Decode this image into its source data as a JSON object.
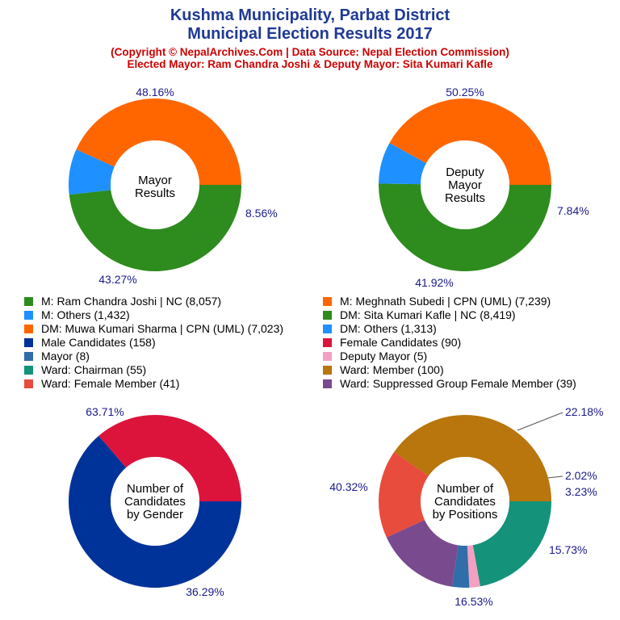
{
  "header": {
    "title_line1": "Kushma Municipality, Parbat District",
    "title_line2": "Municipal Election Results 2017",
    "subtitle_line1": "(Copyright © NepalArchives.Com | Data Source: Nepal Election Commission)",
    "subtitle_line2": "Elected Mayor: Ram Chandra Joshi & Deputy Mayor: Sita Kumari Kafle"
  },
  "legend": {
    "left": [
      {
        "label": "M: Ram Chandra Joshi | NC (8,057)",
        "color": "#2e8b1e"
      },
      {
        "label": "M: Others (1,432)",
        "color": "#1e90ff"
      },
      {
        "label": "DM: Muwa Kumari Sharma | CPN (UML) (7,023)",
        "color": "#ff6600"
      },
      {
        "label": "Male Candidates (158)",
        "color": "#003399"
      },
      {
        "label": "Mayor (8)",
        "color": "#2f6ea8"
      },
      {
        "label": "Ward: Chairman (55)",
        "color": "#14937a"
      },
      {
        "label": "Ward: Female Member (41)",
        "color": "#e84c3d"
      }
    ],
    "right": [
      {
        "label": "M: Meghnath Subedi | CPN (UML) (7,239)",
        "color": "#ff6600"
      },
      {
        "label": "DM: Sita Kumari Kafle | NC (8,419)",
        "color": "#2e8b1e"
      },
      {
        "label": "DM: Others (1,313)",
        "color": "#1e90ff"
      },
      {
        "label": "Female Candidates (90)",
        "color": "#dc143c"
      },
      {
        "label": "Deputy Mayor (5)",
        "color": "#f4a0c0"
      },
      {
        "label": "Ward: Member (100)",
        "color": "#b8760c"
      },
      {
        "label": "Ward: Suppressed Group Female Member (39)",
        "color": "#7a4a8e"
      }
    ]
  },
  "chart_data": [
    {
      "type": "pie",
      "title": "Mayor Results",
      "center_lines": [
        "Mayor",
        "Results"
      ],
      "slices": [
        {
          "name": "M: Ram Chandra Joshi | NC",
          "value": 8057,
          "percent_label": "48.16%",
          "color": "#2e8b1e"
        },
        {
          "name": "M: Others",
          "value": 1432,
          "percent_label": "8.56%",
          "color": "#1e90ff"
        },
        {
          "name": "M: Meghnath Subedi | CPN (UML)",
          "value": 7239,
          "percent_label": "43.27%",
          "color": "#ff6600"
        }
      ]
    },
    {
      "type": "pie",
      "title": "Deputy Mayor Results",
      "center_lines": [
        "Deputy",
        "Mayor",
        "Results"
      ],
      "slices": [
        {
          "name": "DM: Sita Kumari Kafle | NC",
          "value": 8419,
          "percent_label": "50.25%",
          "color": "#2e8b1e"
        },
        {
          "name": "DM: Others",
          "value": 1313,
          "percent_label": "7.84%",
          "color": "#1e90ff"
        },
        {
          "name": "DM: Muwa Kumari Sharma | CPN (UML)",
          "value": 7023,
          "percent_label": "41.92%",
          "color": "#ff6600"
        }
      ]
    },
    {
      "type": "pie",
      "title": "Number of Candidates by Gender",
      "center_lines": [
        "Number of",
        "Candidates",
        "by Gender"
      ],
      "slices": [
        {
          "name": "Male Candidates",
          "value": 158,
          "percent_label": "63.71%",
          "color": "#003399"
        },
        {
          "name": "Female Candidates",
          "value": 90,
          "percent_label": "36.29%",
          "color": "#dc143c"
        }
      ]
    },
    {
      "type": "pie",
      "title": "Number of Candidates by Positions",
      "center_lines": [
        "Number of",
        "Candidates",
        "by Positions"
      ],
      "slices": [
        {
          "name": "Ward: Chairman",
          "value": 55,
          "percent_label": "22.18%",
          "color": "#14937a"
        },
        {
          "name": "Deputy Mayor",
          "value": 5,
          "percent_label": "2.02%",
          "color": "#f4a0c0"
        },
        {
          "name": "Mayor",
          "value": 8,
          "percent_label": "3.23%",
          "color": "#2f6ea8"
        },
        {
          "name": "Ward: Suppressed Group Female Member",
          "value": 39,
          "percent_label": "15.73%",
          "color": "#7a4a8e"
        },
        {
          "name": "Ward: Female Member",
          "value": 41,
          "percent_label": "16.53%",
          "color": "#e84c3d"
        },
        {
          "name": "Ward: Member",
          "value": 100,
          "percent_label": "40.32%",
          "color": "#b8760c"
        }
      ]
    }
  ]
}
